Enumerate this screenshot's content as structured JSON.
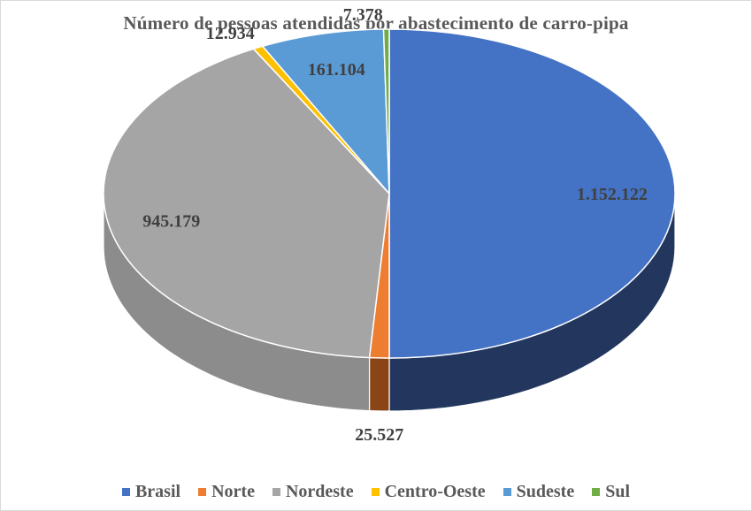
{
  "chart_data": {
    "type": "pie",
    "title": "Número de pessoas atendidas por abastecimento de carro-pipa",
    "legend_position": "bottom",
    "slices": [
      {
        "name": "Brasil",
        "value": 1152122,
        "label": "1.152.122",
        "color": "#4472C4",
        "side_color": "#23375E"
      },
      {
        "name": "Norte",
        "value": 25527,
        "label": "25.527",
        "color": "#ED7D31",
        "side_color": "#8A4516"
      },
      {
        "name": "Nordeste",
        "value": 945179,
        "label": "945.179",
        "color": "#A5A5A5",
        "side_color": "#8C8C8C"
      },
      {
        "name": "Centro-Oeste",
        "value": 12934,
        "label": "12.934",
        "color": "#FFC000",
        "side_color": "#9E7700"
      },
      {
        "name": "Sudeste",
        "value": 161104,
        "label": "161.104",
        "color": "#5B9BD5",
        "side_color": "#355F86"
      },
      {
        "name": "Sul",
        "value": 7378,
        "label": "7.378",
        "color": "#70AD47",
        "side_color": "#3F6628"
      }
    ]
  }
}
